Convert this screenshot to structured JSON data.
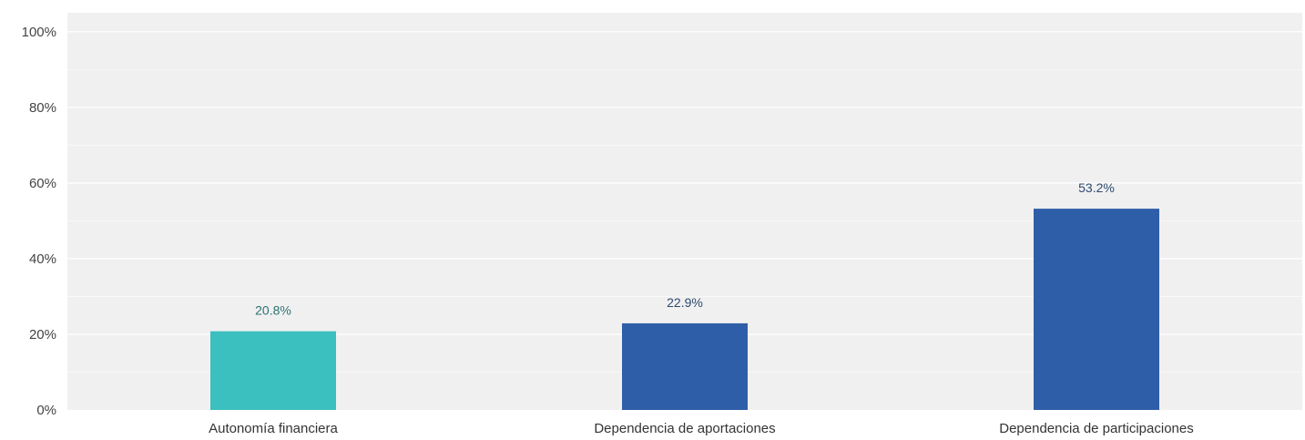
{
  "chart_data": {
    "type": "bar",
    "title": "",
    "xlabel": "",
    "ylabel": "",
    "categories": [
      "Autonomía financiera",
      "Dependencia de aportaciones",
      "Dependencia de participaciones"
    ],
    "values": [
      20.8,
      22.9,
      53.2
    ],
    "value_labels": [
      "20.8%",
      "22.9%",
      "53.2%"
    ],
    "bar_colors": [
      "#3bbfbf",
      "#2e5ea8",
      "#2e5ea8"
    ],
    "label_colors": [
      "#2d7373",
      "#2e4a70",
      "#2e4a70"
    ],
    "ylim": [
      0,
      105
    ],
    "yticks": [
      0,
      20,
      40,
      60,
      80,
      100
    ],
    "ytick_labels": [
      "0%",
      "20%",
      "40%",
      "60%",
      "80%",
      "100%"
    ],
    "grid": true,
    "plot_background": "#f0f0f0",
    "grid_color": "#ffffff",
    "legend": "none"
  }
}
